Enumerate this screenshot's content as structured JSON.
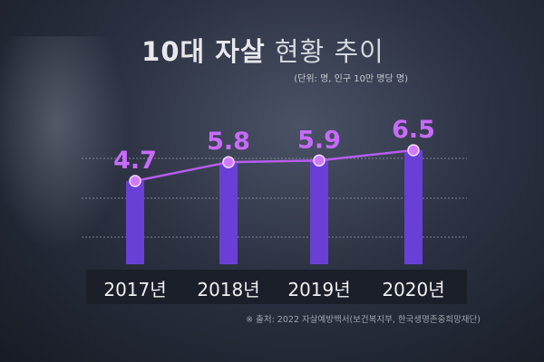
{
  "chart_data": {
    "type": "bar+line",
    "title_bold": "10대 자살",
    "title_rest": "현황 추이",
    "unit": "(단위: 명, 인구 10만 명당 명)",
    "categories": [
      "2017년",
      "2018년",
      "2019년",
      "2020년"
    ],
    "values": [
      4.7,
      5.8,
      5.9,
      6.5
    ],
    "value_labels": [
      "4.7",
      "5.8",
      "5.9",
      "6.5"
    ],
    "grid": true,
    "colors": {
      "bar": "#6a3fd6",
      "line": "#b85cf0",
      "label": "#c86bff"
    }
  },
  "source": "※ 출처: 2022 자살예방백서(보건복지부, 한국생명존중희망재단)"
}
